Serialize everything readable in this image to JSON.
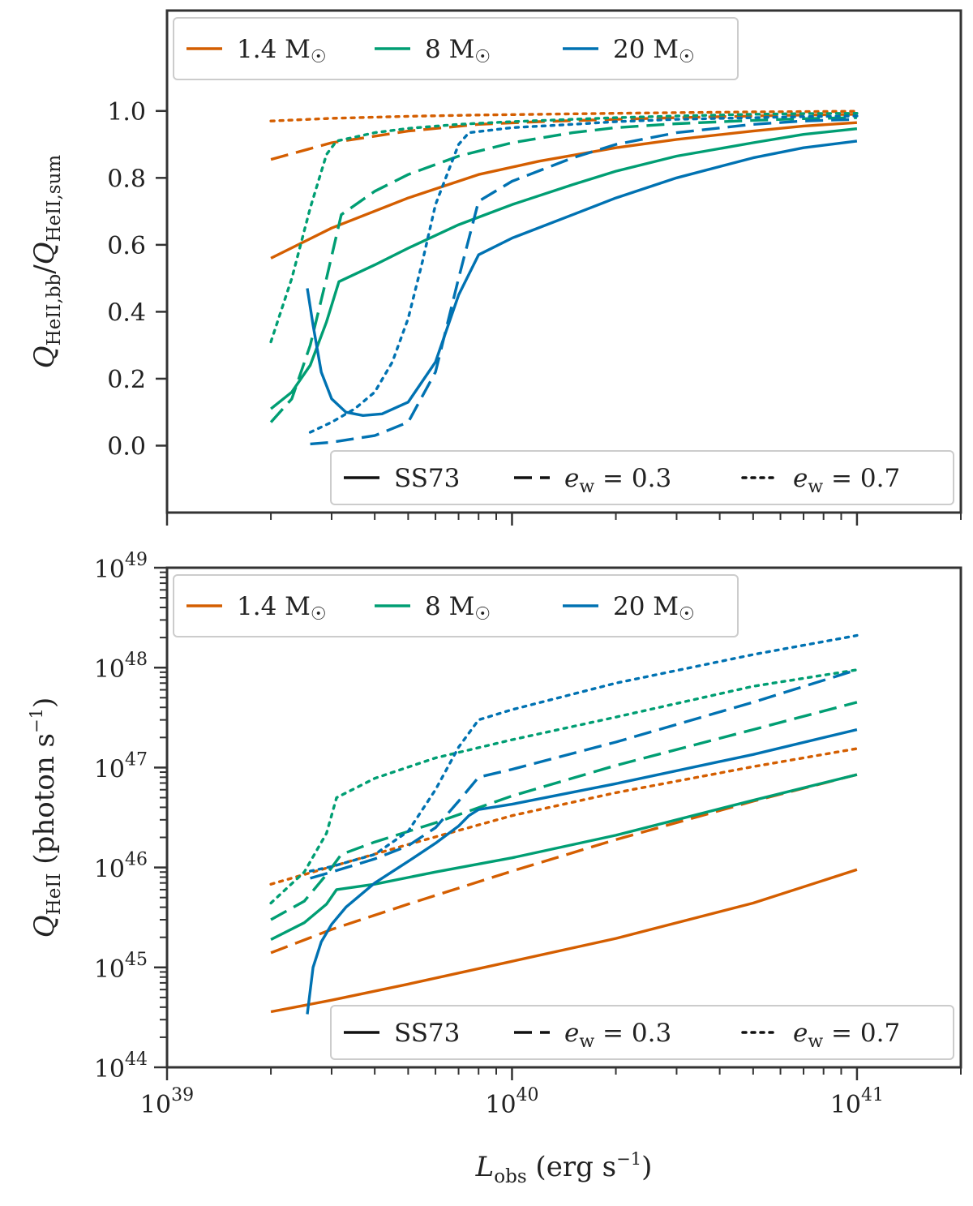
{
  "figure": {
    "colors": {
      "m1_4": "#d45e00",
      "m8": "#009e73",
      "m20": "#0072b2",
      "frame": "#333333"
    },
    "xlabel": "L_obs (erg s^-1)",
    "xlabel_main": "L",
    "xlabel_sub": "obs",
    "xlabel_units": "(erg s",
    "xlabel_units_exp": "−1",
    "xlabel_units_close": ")",
    "xlim": [
      1e+39,
      2e+41
    ],
    "x_tick_labels": [
      {
        "value": 1e+39,
        "base": "10",
        "exp": "39"
      },
      {
        "value": 1e+40,
        "base": "10",
        "exp": "40"
      },
      {
        "value": 1e+41,
        "base": "10",
        "exp": "41"
      }
    ]
  },
  "chart_data": [
    {
      "type": "line",
      "panel": "top",
      "ylabel": "Q_HeII,bb/Q_HeII,sum",
      "ylabel_parts": {
        "q1": "Q",
        "sub1": "HeII,bb",
        "slash": "/",
        "q2": "Q",
        "sub2": "HeII,sum"
      },
      "yscale": "linear",
      "ylim": [
        -0.2,
        1.3
      ],
      "y_ticks": [
        {
          "value": 0.0,
          "label": "0.0"
        },
        {
          "value": 0.2,
          "label": "0.2"
        },
        {
          "value": 0.4,
          "label": "0.4"
        },
        {
          "value": 0.6,
          "label": "0.6"
        },
        {
          "value": 0.8,
          "label": "0.8"
        },
        {
          "value": 1.0,
          "label": "1.0"
        }
      ],
      "mass_legend": [
        {
          "label": "1.4",
          "unit": "M",
          "color_key": "m1_4"
        },
        {
          "label": "8",
          "unit": "M",
          "color_key": "m8"
        },
        {
          "label": "20",
          "unit": "M",
          "color_key": "m20"
        }
      ],
      "style_legend": [
        {
          "label": "SS73",
          "style": "solid"
        },
        {
          "label": "e_w = 0.3",
          "sym": "e",
          "sub": "w",
          "eq": "= 0.3",
          "style": "dashed"
        },
        {
          "label": "e_w = 0.7",
          "sym": "e",
          "sub": "w",
          "eq": "= 0.7",
          "style": "dotted"
        }
      ],
      "series": [
        {
          "name": "1.4 M☉ SS73",
          "color_key": "m1_4",
          "style": "solid",
          "x": [
            2e+39,
            3e+39,
            5e+39,
            8e+39,
            1.2e+40,
            2e+40,
            3e+40,
            5e+40,
            7e+40,
            1e+41
          ],
          "y": [
            0.56,
            0.65,
            0.74,
            0.81,
            0.85,
            0.89,
            0.915,
            0.94,
            0.955,
            0.965
          ]
        },
        {
          "name": "1.4 M☉ e_w=0.3",
          "color_key": "m1_4",
          "style": "dashed",
          "x": [
            2e+39,
            3e+39,
            5e+39,
            8e+39,
            1.2e+40,
            2e+40,
            3e+40,
            5e+40,
            7e+40,
            1e+41
          ],
          "y": [
            0.855,
            0.905,
            0.94,
            0.96,
            0.968,
            0.975,
            0.98,
            0.985,
            0.988,
            0.99
          ]
        },
        {
          "name": "1.4 M☉ e_w=0.7",
          "color_key": "m1_4",
          "style": "dotted",
          "x": [
            2e+39,
            3e+39,
            5e+39,
            8e+39,
            1.2e+40,
            2e+40,
            3e+40,
            5e+40,
            7e+40,
            1e+41
          ],
          "y": [
            0.97,
            0.978,
            0.984,
            0.988,
            0.99,
            0.993,
            0.995,
            0.997,
            0.998,
            0.999
          ]
        },
        {
          "name": "8 M☉ SS73",
          "color_key": "m8",
          "style": "solid",
          "x": [
            2e+39,
            2.3e+39,
            2.6e+39,
            2.9e+39,
            3.15e+39,
            4e+39,
            5e+39,
            7e+39,
            1e+40,
            1.5e+40,
            2e+40,
            3e+40,
            5e+40,
            7e+40,
            1e+41
          ],
          "y": [
            0.11,
            0.16,
            0.24,
            0.37,
            0.49,
            0.54,
            0.59,
            0.66,
            0.72,
            0.78,
            0.82,
            0.865,
            0.905,
            0.93,
            0.947
          ]
        },
        {
          "name": "8 M☉ e_w=0.3",
          "color_key": "m8",
          "style": "dashed",
          "x": [
            2e+39,
            2.3e+39,
            2.6e+39,
            2.9e+39,
            3.2e+39,
            4e+39,
            5e+39,
            7e+39,
            1e+40,
            1.5e+40,
            2e+40,
            3e+40,
            5e+40,
            7e+40,
            1e+41
          ],
          "y": [
            0.07,
            0.14,
            0.3,
            0.5,
            0.69,
            0.76,
            0.81,
            0.865,
            0.905,
            0.935,
            0.95,
            0.962,
            0.972,
            0.977,
            0.98
          ]
        },
        {
          "name": "8 M☉ e_w=0.7",
          "color_key": "m8",
          "style": "dotted",
          "x": [
            2e+39,
            2.3e+39,
            2.6e+39,
            2.9e+39,
            3.1e+39,
            4e+39,
            5e+39,
            7e+39,
            1e+40,
            1.5e+40,
            2e+40,
            3e+40,
            5e+40,
            7e+40,
            1e+41
          ],
          "y": [
            0.31,
            0.5,
            0.71,
            0.87,
            0.91,
            0.935,
            0.948,
            0.96,
            0.968,
            0.975,
            0.98,
            0.985,
            0.99,
            0.992,
            0.993
          ]
        },
        {
          "name": "20 M☉ SS73",
          "color_key": "m20",
          "style": "solid",
          "x": [
            2.55e+39,
            2.65e+39,
            2.8e+39,
            3e+39,
            3.3e+39,
            3.7e+39,
            4.2e+39,
            5e+39,
            6e+39,
            7e+39,
            8e+39,
            1e+40,
            1.5e+40,
            2e+40,
            3e+40,
            5e+40,
            7e+40,
            1e+41
          ],
          "y": [
            0.47,
            0.36,
            0.22,
            0.14,
            0.1,
            0.09,
            0.095,
            0.13,
            0.25,
            0.45,
            0.57,
            0.62,
            0.69,
            0.74,
            0.8,
            0.86,
            0.89,
            0.91
          ]
        },
        {
          "name": "20 M☉ e_w=0.3",
          "color_key": "m20",
          "style": "dashed",
          "x": [
            2.6e+39,
            3e+39,
            4e+39,
            5e+39,
            6e+39,
            7e+39,
            8e+39,
            1e+40,
            1.5e+40,
            2e+40,
            3e+40,
            5e+40,
            7e+40,
            1e+41
          ],
          "y": [
            0.005,
            0.01,
            0.03,
            0.07,
            0.22,
            0.5,
            0.73,
            0.79,
            0.86,
            0.9,
            0.935,
            0.96,
            0.97,
            0.975
          ]
        },
        {
          "name": "20 M☉ e_w=0.7",
          "color_key": "m20",
          "style": "dotted",
          "x": [
            2.6e+39,
            3e+39,
            3.5e+39,
            4e+39,
            4.5e+39,
            5e+39,
            5.5e+39,
            6e+39,
            7e+39,
            7.5e+39,
            1e+40,
            1.5e+40,
            2e+40,
            3e+40,
            5e+40,
            7e+40,
            1e+41
          ],
          "y": [
            0.04,
            0.07,
            0.11,
            0.16,
            0.25,
            0.38,
            0.55,
            0.72,
            0.9,
            0.935,
            0.95,
            0.96,
            0.968,
            0.975,
            0.98,
            0.983,
            0.985
          ]
        }
      ]
    },
    {
      "type": "line",
      "panel": "bottom",
      "ylabel": "Q_HeII (photon s^-1)",
      "ylabel_parts": {
        "q": "Q",
        "sub": "HeII",
        "units": "(photon s",
        "units_exp": "−1",
        "units_close": ")"
      },
      "yscale": "log",
      "ylim": [
        1e+44,
        1e+49
      ],
      "y_ticks": [
        {
          "value": 1e+44,
          "base": "10",
          "exp": "44"
        },
        {
          "value": 1e+45,
          "base": "10",
          "exp": "45"
        },
        {
          "value": 1e+46,
          "base": "10",
          "exp": "46"
        },
        {
          "value": 1e+47,
          "base": "10",
          "exp": "47"
        },
        {
          "value": 1e+48,
          "base": "10",
          "exp": "48"
        },
        {
          "value": 1e+49,
          "base": "10",
          "exp": "49"
        }
      ],
      "mass_legend": [
        {
          "label": "1.4",
          "unit": "M",
          "color_key": "m1_4"
        },
        {
          "label": "8",
          "unit": "M",
          "color_key": "m8"
        },
        {
          "label": "20",
          "unit": "M",
          "color_key": "m20"
        }
      ],
      "style_legend": [
        {
          "label": "SS73",
          "style": "solid"
        },
        {
          "label": "e_w = 0.3",
          "sym": "e",
          "sub": "w",
          "eq": "= 0.3",
          "style": "dashed"
        },
        {
          "label": "e_w = 0.7",
          "sym": "e",
          "sub": "w",
          "eq": "= 0.7",
          "style": "dotted"
        }
      ],
      "series": [
        {
          "name": "1.4 M☉ SS73",
          "color_key": "m1_4",
          "style": "solid",
          "x": [
            2e+39,
            3e+39,
            5e+39,
            1e+40,
            2e+40,
            5e+40,
            1e+41
          ],
          "y": [
            3.6e+44,
            4.7e+44,
            6.8e+44,
            1.15e+45,
            1.95e+45,
            4.4e+45,
            9.5e+45
          ]
        },
        {
          "name": "1.4 M☉ e_w=0.3",
          "color_key": "m1_4",
          "style": "dashed",
          "x": [
            2e+39,
            3e+39,
            5e+39,
            1e+40,
            2e+40,
            5e+40,
            1e+41
          ],
          "y": [
            1.4e+45,
            2.4e+45,
            4.3e+45,
            9.2e+45,
            1.9e+46,
            4.6e+46,
            8.5e+46
          ]
        },
        {
          "name": "1.4 M☉ e_w=0.7",
          "color_key": "m1_4",
          "style": "dotted",
          "x": [
            2e+39,
            3e+39,
            5e+39,
            1e+40,
            2e+40,
            5e+40,
            1e+41
          ],
          "y": [
            6.8e+45,
            1.02e+46,
            1.7e+46,
            3.3e+46,
            5.6e+46,
            1.02e+47,
            1.55e+47
          ]
        },
        {
          "name": "8 M☉ SS73",
          "color_key": "m8",
          "style": "solid",
          "x": [
            2e+39,
            2.5e+39,
            2.9e+39,
            3.1e+39,
            4e+39,
            6e+39,
            1e+40,
            2e+40,
            5e+40,
            1e+41
          ],
          "y": [
            1.9e+45,
            2.8e+45,
            4.3e+45,
            6e+45,
            6.8e+45,
            9e+45,
            1.25e+46,
            2.1e+46,
            4.7e+46,
            8.5e+46
          ]
        },
        {
          "name": "8 M☉ e_w=0.3",
          "color_key": "m8",
          "style": "dashed",
          "x": [
            2e+39,
            2.5e+39,
            2.9e+39,
            3.2e+39,
            4e+39,
            6e+39,
            1e+40,
            2e+40,
            5e+40,
            1e+41
          ],
          "y": [
            3e+45,
            4.6e+45,
            8.5e+45,
            1.35e+46,
            1.8e+46,
            2.8e+46,
            5.2e+46,
            1.05e+47,
            2.4e+47,
            4.5e+47
          ]
        },
        {
          "name": "8 M☉ e_w=0.7",
          "color_key": "m8",
          "style": "dotted",
          "x": [
            2e+39,
            2.5e+39,
            2.9e+39,
            3.1e+39,
            4e+39,
            6e+39,
            1e+40,
            2e+40,
            5e+40,
            1e+41
          ],
          "y": [
            4.4e+45,
            9e+45,
            2.2e+46,
            5e+46,
            7.8e+46,
            1.25e+47,
            1.9e+47,
            3.2e+47,
            6.5e+47,
            9.5e+47
          ]
        },
        {
          "name": "20 M☉ SS73",
          "color_key": "m20",
          "style": "solid",
          "x": [
            2.55e+39,
            2.65e+39,
            2.8e+39,
            3e+39,
            3.3e+39,
            4e+39,
            5e+39,
            6e+39,
            7e+39,
            7.5e+39,
            8e+39,
            1e+40,
            2e+40,
            5e+40,
            1e+41
          ],
          "y": [
            3.4e+44,
            1e+45,
            1.8e+45,
            2.7e+45,
            4e+45,
            7e+45,
            1.15e+46,
            1.75e+46,
            2.6e+46,
            3.3e+46,
            3.8e+46,
            4.3e+46,
            6.9e+46,
            1.35e+47,
            2.4e+47
          ]
        },
        {
          "name": "20 M☉ e_w=0.3",
          "color_key": "m20",
          "style": "dashed",
          "x": [
            2.6e+39,
            3e+39,
            4e+39,
            5e+39,
            6e+39,
            7e+39,
            8e+39,
            1e+40,
            2e+40,
            5e+40,
            1e+41
          ],
          "y": [
            7.8e+45,
            9e+45,
            1.22e+46,
            1.65e+46,
            2.5e+46,
            4.6e+46,
            8e+46,
            9.6e+46,
            1.8e+47,
            4.5e+47,
            9.5e+47
          ]
        },
        {
          "name": "20 M☉ e_w=0.7",
          "color_key": "m20",
          "style": "dotted",
          "x": [
            2.6e+39,
            3e+39,
            4e+39,
            5e+39,
            6e+39,
            7e+39,
            8e+39,
            1e+40,
            2e+40,
            5e+40,
            1e+41
          ],
          "y": [
            9.2e+45,
            1.02e+46,
            1.35e+46,
            2.3e+46,
            6e+46,
            1.6e+47,
            3e+47,
            3.8e+47,
            7e+47,
            1.35e+48,
            2.1e+48
          ]
        }
      ]
    }
  ]
}
